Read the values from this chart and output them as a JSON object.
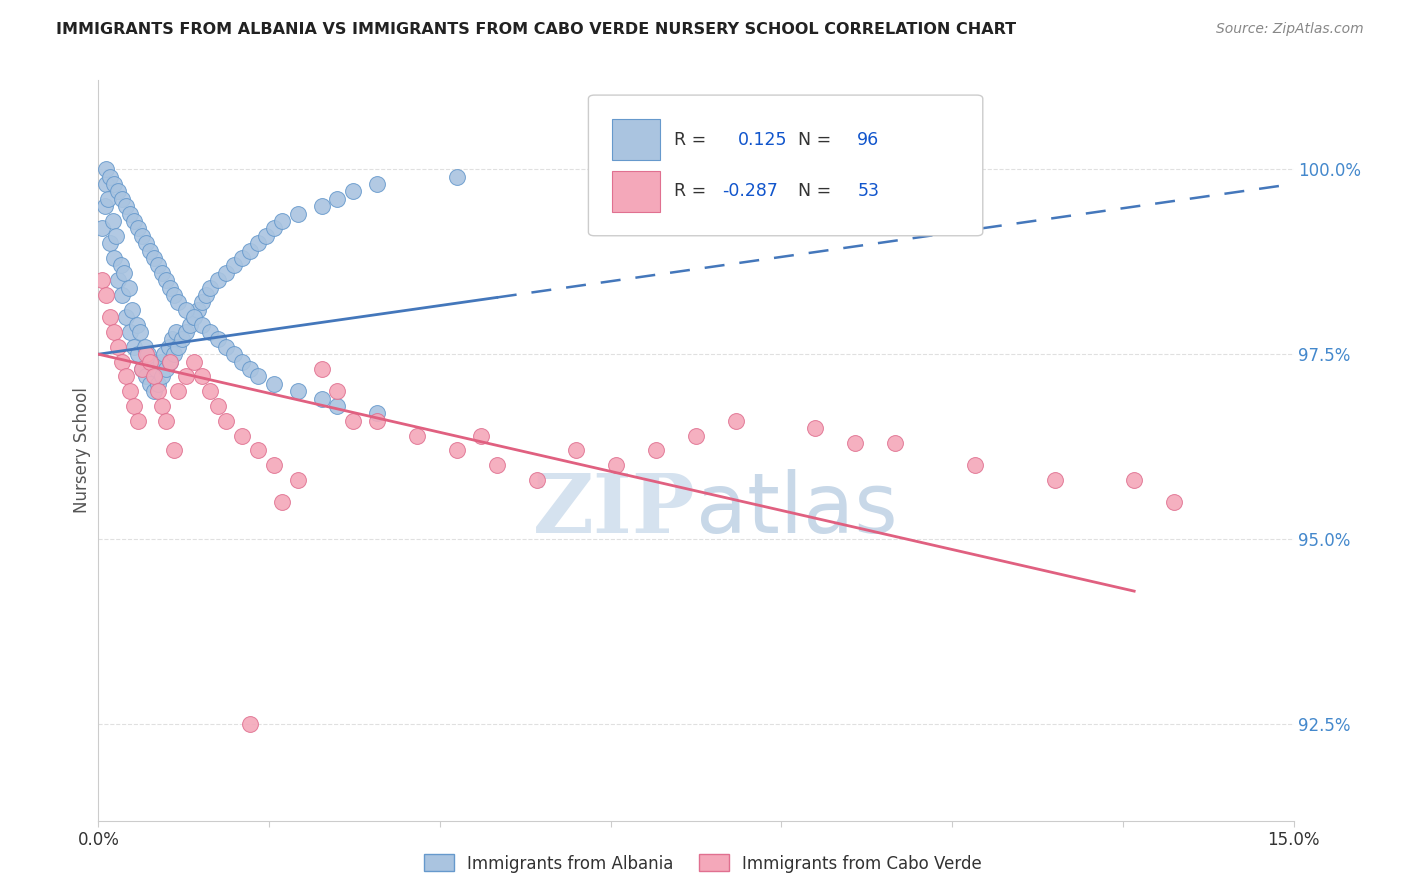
{
  "title": "IMMIGRANTS FROM ALBANIA VS IMMIGRANTS FROM CABO VERDE NURSERY SCHOOL CORRELATION CHART",
  "source": "Source: ZipAtlas.com",
  "ylabel": "Nursery School",
  "ytick_values": [
    92.5,
    95.0,
    97.5,
    100.0
  ],
  "xmin": 0.0,
  "xmax": 15.0,
  "ymin": 91.2,
  "ymax": 101.2,
  "r_albania": 0.125,
  "n_albania": 96,
  "r_cabo_verde": -0.287,
  "n_cabo_verde": 53,
  "albania_color": "#aac4e0",
  "cabo_verde_color": "#f4a8ba",
  "albania_edge_color": "#6699cc",
  "cabo_verde_edge_color": "#e07090",
  "albania_line_color": "#4477bb",
  "cabo_verde_line_color": "#e06080",
  "background_color": "#ffffff",
  "grid_color": "#e0e0e0",
  "watermark_color": "#d5e2ef",
  "legend_label_albania": "Immigrants from Albania",
  "legend_label_cabo_verde": "Immigrants from Cabo Verde",
  "albania_scatter_x": [
    0.05,
    0.08,
    0.1,
    0.12,
    0.15,
    0.18,
    0.2,
    0.22,
    0.25,
    0.28,
    0.3,
    0.32,
    0.35,
    0.38,
    0.4,
    0.42,
    0.45,
    0.48,
    0.5,
    0.52,
    0.55,
    0.58,
    0.6,
    0.62,
    0.65,
    0.68,
    0.7,
    0.72,
    0.75,
    0.78,
    0.8,
    0.82,
    0.85,
    0.88,
    0.9,
    0.92,
    0.95,
    0.98,
    1.0,
    1.05,
    1.1,
    1.15,
    1.2,
    1.25,
    1.3,
    1.35,
    1.4,
    1.5,
    1.6,
    1.7,
    1.8,
    1.9,
    2.0,
    2.1,
    2.2,
    2.3,
    2.5,
    2.8,
    3.0,
    3.2,
    3.5,
    4.5,
    0.1,
    0.15,
    0.2,
    0.25,
    0.3,
    0.35,
    0.4,
    0.45,
    0.5,
    0.55,
    0.6,
    0.65,
    0.7,
    0.75,
    0.8,
    0.85,
    0.9,
    0.95,
    1.0,
    1.1,
    1.2,
    1.3,
    1.4,
    1.5,
    1.6,
    1.7,
    1.8,
    1.9,
    2.0,
    2.2,
    2.5,
    2.8,
    3.0,
    3.5
  ],
  "albania_scatter_y": [
    99.2,
    99.5,
    99.8,
    99.6,
    99.0,
    99.3,
    98.8,
    99.1,
    98.5,
    98.7,
    98.3,
    98.6,
    98.0,
    98.4,
    97.8,
    98.1,
    97.6,
    97.9,
    97.5,
    97.8,
    97.3,
    97.6,
    97.2,
    97.5,
    97.1,
    97.4,
    97.0,
    97.3,
    97.1,
    97.4,
    97.2,
    97.5,
    97.3,
    97.6,
    97.4,
    97.7,
    97.5,
    97.8,
    97.6,
    97.7,
    97.8,
    97.9,
    98.0,
    98.1,
    98.2,
    98.3,
    98.4,
    98.5,
    98.6,
    98.7,
    98.8,
    98.9,
    99.0,
    99.1,
    99.2,
    99.3,
    99.4,
    99.5,
    99.6,
    99.7,
    99.8,
    99.9,
    100.0,
    99.9,
    99.8,
    99.7,
    99.6,
    99.5,
    99.4,
    99.3,
    99.2,
    99.1,
    99.0,
    98.9,
    98.8,
    98.7,
    98.6,
    98.5,
    98.4,
    98.3,
    98.2,
    98.1,
    98.0,
    97.9,
    97.8,
    97.7,
    97.6,
    97.5,
    97.4,
    97.3,
    97.2,
    97.1,
    97.0,
    96.9,
    96.8,
    96.7
  ],
  "cabo_verde_scatter_x": [
    0.05,
    0.1,
    0.15,
    0.2,
    0.25,
    0.3,
    0.35,
    0.4,
    0.45,
    0.5,
    0.55,
    0.6,
    0.65,
    0.7,
    0.75,
    0.8,
    0.85,
    0.9,
    0.95,
    1.0,
    1.1,
    1.2,
    1.3,
    1.4,
    1.5,
    1.6,
    1.8,
    2.0,
    2.2,
    2.5,
    2.8,
    3.0,
    3.5,
    4.0,
    4.5,
    5.0,
    5.5,
    6.0,
    6.5,
    7.0,
    7.5,
    8.0,
    9.0,
    9.5,
    10.0,
    11.0,
    12.0,
    13.0,
    13.5,
    2.3,
    3.2,
    4.8,
    1.9
  ],
  "cabo_verde_scatter_y": [
    98.5,
    98.3,
    98.0,
    97.8,
    97.6,
    97.4,
    97.2,
    97.0,
    96.8,
    96.6,
    97.3,
    97.5,
    97.4,
    97.2,
    97.0,
    96.8,
    96.6,
    97.4,
    96.2,
    97.0,
    97.2,
    97.4,
    97.2,
    97.0,
    96.8,
    96.6,
    96.4,
    96.2,
    96.0,
    95.8,
    97.3,
    97.0,
    96.6,
    96.4,
    96.2,
    96.0,
    95.8,
    96.2,
    96.0,
    96.2,
    96.4,
    96.6,
    96.5,
    96.3,
    96.3,
    96.0,
    95.8,
    95.8,
    95.5,
    95.5,
    96.6,
    96.4,
    92.5
  ]
}
